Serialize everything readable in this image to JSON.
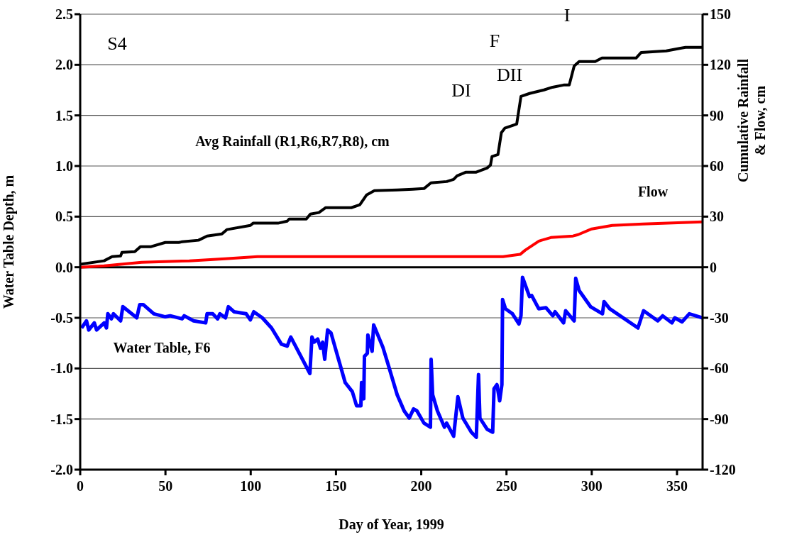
{
  "chart_data": {
    "type": "line",
    "xlabel": "Day of Year, 1999",
    "ylabel": "Water Table Depth, m",
    "y2label": "Cumulative Rainfall & Flow, cm",
    "annotations": [
      "S4",
      "F",
      "DI",
      "DII",
      "I"
    ],
    "xlim": [
      0,
      365
    ],
    "xticks": [
      0,
      50,
      100,
      150,
      200,
      250,
      300,
      350
    ],
    "ylim": [
      -2,
      2.5
    ],
    "yticks": [
      {
        "value": 2.5,
        "label": "2.5"
      },
      {
        "value": 2,
        "label": "2.0"
      },
      {
        "value": 1.5,
        "label": "1.5"
      },
      {
        "value": 1,
        "label": "1.0"
      },
      {
        "value": 0.5,
        "label": "0.5"
      },
      {
        "value": 0,
        "label": "0.0"
      },
      {
        "value": -0.5,
        "label": "-0.5"
      },
      {
        "value": -1,
        "label": "-1.0"
      },
      {
        "value": -1.5,
        "label": "-1.5"
      },
      {
        "value": -2,
        "label": "-2.0"
      }
    ],
    "y2lim": [
      -120,
      150
    ],
    "y2ticks": [
      150,
      120,
      90,
      60,
      30,
      0,
      -30,
      -60,
      -90,
      -120
    ],
    "grid": "y",
    "marker": "none",
    "line_style": "solid",
    "ref_lines": [
      {
        "axis": "y",
        "value": 0,
        "color": "#000000"
      }
    ],
    "series": [
      {
        "name": "Avg Rainfall (R1,R6,R7,R8), cm",
        "color": "#000000",
        "axis": "y2",
        "x": [
          0,
          14,
          18.7,
          23.7,
          24.5,
          32,
          35.3,
          41.6,
          49.9,
          57.8,
          59.9,
          69.4,
          74.4,
          83.1,
          86,
          99.8,
          101.4,
          116,
          121.4,
          122.6,
          132.6,
          135,
          140,
          144,
          159,
          164,
          168,
          172.5,
          186,
          195,
          201.6,
          205.7,
          215,
          219,
          221,
          226,
          232,
          238.6,
          240.6,
          241.5,
          245,
          247,
          249,
          256,
          258.5,
          263.5,
          272,
          277,
          283.5,
          286.8,
          289.7,
          292.6,
          302,
          306,
          326,
          329,
          343.7,
          352,
          355,
          365
        ],
        "values": [
          1.7,
          3.8,
          6.3,
          6.7,
          8.8,
          9.2,
          12.2,
          12.2,
          14.7,
          14.7,
          15.1,
          16,
          18.5,
          19.7,
          22.3,
          24.8,
          26.1,
          26.1,
          27.3,
          28.6,
          28.6,
          31.5,
          32.4,
          35.3,
          35.3,
          37,
          42.9,
          45.4,
          45.8,
          46.2,
          46.6,
          50,
          50.8,
          52.1,
          54.2,
          56.3,
          56.3,
          58.8,
          60.5,
          65.6,
          66.8,
          79.8,
          82.4,
          84.9,
          101.3,
          103,
          105.1,
          106.7,
          108,
          108,
          119.3,
          121.9,
          121.9,
          124,
          124,
          127.3,
          128.2,
          129.8,
          130.3,
          130.3
        ]
      },
      {
        "name": "Flow",
        "color": "#ff0000",
        "axis": "y2",
        "x": [
          0,
          14,
          36,
          64,
          85,
          104,
          121,
          248,
          258,
          261,
          269,
          276,
          289,
          292,
          300,
          312,
          330,
          365
        ],
        "values": [
          0,
          0.8,
          2.9,
          3.8,
          5,
          6.3,
          6.3,
          6.3,
          7.6,
          10.1,
          15.5,
          17.6,
          18.5,
          19.3,
          22.7,
          24.8,
          25.6,
          26.9
        ]
      },
      {
        "name": "Water Table, F6",
        "color": "#0000ff",
        "axis": "y",
        "x": [
          0.8,
          3.7,
          5,
          8.3,
          9.6,
          14.1,
          15.4,
          16.2,
          18.3,
          19.5,
          23.7,
          25,
          33.2,
          34.9,
          37,
          43.2,
          49.9,
          52.8,
          59.8,
          61,
          66.5,
          73.6,
          74.4,
          77.7,
          80.6,
          81.9,
          85.2,
          86.9,
          90.2,
          97.3,
          99.8,
          101.8,
          106.8,
          112.2,
          118,
          121.4,
          123.5,
          134.7,
          135.9,
          137.2,
          139.3,
          140.9,
          142.2,
          143.4,
          145.1,
          147.1,
          155.4,
          159.6,
          162.1,
          164.6,
          165,
          166.3,
          166.7,
          168.4,
          168.7,
          171.2,
          172.1,
          177.5,
          180.4,
          185.9,
          190,
          193,
          195.5,
          197.5,
          201.6,
          205.4,
          205.8,
          206.7,
          209.5,
          213.6,
          214.9,
          219,
          221.5,
          224.4,
          229.4,
          232.3,
          233.6,
          234.4,
          238.6,
          241.9,
          242.7,
          244.4,
          246,
          247.3,
          247.7,
          249.4,
          253.5,
          257.3,
          258.5,
          259.4,
          263.5,
          264.8,
          268.9,
          273.1,
          277.2,
          278.5,
          283.5,
          284.7,
          289.7,
          290.6,
          292.6,
          299.3,
          306.3,
          307.2,
          310.5,
          327.1,
          330.4,
          338.7,
          341.6,
          347,
          348.7,
          353,
          357.2,
          365
        ],
        "values": [
          -0.6,
          -0.53,
          -0.62,
          -0.55,
          -0.62,
          -0.55,
          -0.6,
          -0.46,
          -0.51,
          -0.46,
          -0.53,
          -0.39,
          -0.5,
          -0.37,
          -0.37,
          -0.46,
          -0.49,
          -0.48,
          -0.51,
          -0.48,
          -0.53,
          -0.55,
          -0.46,
          -0.46,
          -0.51,
          -0.46,
          -0.5,
          -0.39,
          -0.44,
          -0.46,
          -0.52,
          -0.44,
          -0.5,
          -0.6,
          -0.76,
          -0.78,
          -0.69,
          -1.05,
          -0.69,
          -0.74,
          -0.71,
          -0.8,
          -0.74,
          -0.91,
          -0.62,
          -0.65,
          -1.14,
          -1.23,
          -1.37,
          -1.37,
          -1.14,
          -1.3,
          -0.88,
          -0.85,
          -0.67,
          -0.83,
          -0.57,
          -0.79,
          -0.95,
          -1.26,
          -1.42,
          -1.49,
          -1.4,
          -1.42,
          -1.54,
          -1.58,
          -0.91,
          -1.26,
          -1.42,
          -1.58,
          -1.54,
          -1.67,
          -1.28,
          -1.49,
          -1.63,
          -1.68,
          -1.06,
          -1.49,
          -1.6,
          -1.63,
          -1.2,
          -1.16,
          -1.32,
          -1.16,
          -0.32,
          -0.41,
          -0.46,
          -0.56,
          -0.48,
          -0.1,
          -0.29,
          -0.28,
          -0.41,
          -0.4,
          -0.48,
          -0.44,
          -0.55,
          -0.43,
          -0.53,
          -0.11,
          -0.23,
          -0.39,
          -0.46,
          -0.34,
          -0.41,
          -0.6,
          -0.43,
          -0.53,
          -0.48,
          -0.55,
          -0.5,
          -0.54,
          -0.46,
          -0.5
        ]
      }
    ]
  }
}
